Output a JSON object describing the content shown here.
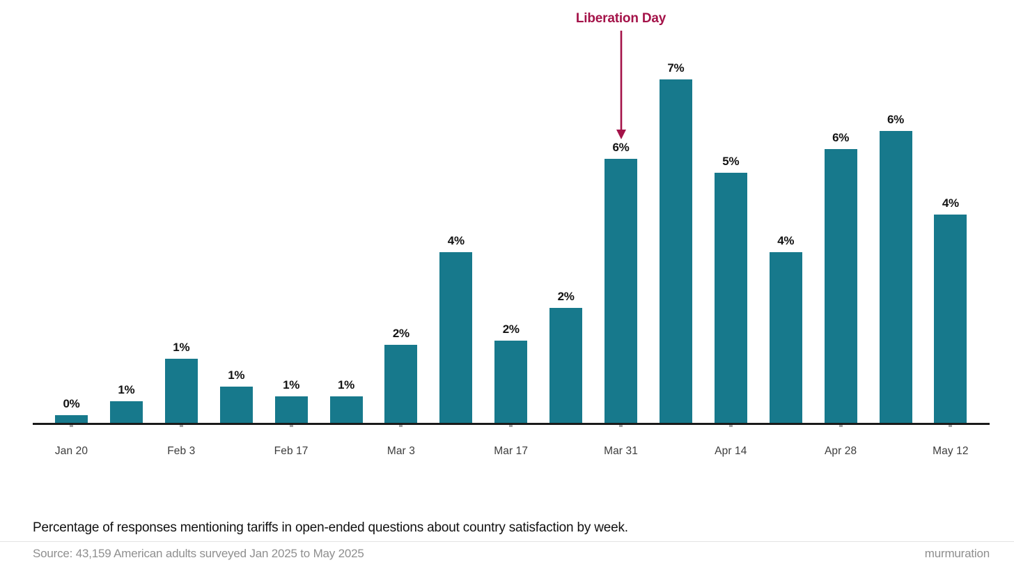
{
  "chart_data": {
    "type": "bar",
    "title": "",
    "xlabel": "",
    "ylabel": "",
    "ylim": [
      0,
      7.4
    ],
    "grid": false,
    "legend": false,
    "bars": [
      {
        "value_pct": 0.2,
        "label": "0%"
      },
      {
        "value_pct": 0.5,
        "label": "1%"
      },
      {
        "value_pct": 1.4,
        "label": "1%"
      },
      {
        "value_pct": 0.8,
        "label": "1%"
      },
      {
        "value_pct": 0.6,
        "label": "1%"
      },
      {
        "value_pct": 0.6,
        "label": "1%"
      },
      {
        "value_pct": 1.7,
        "label": "2%"
      },
      {
        "value_pct": 3.7,
        "label": "4%"
      },
      {
        "value_pct": 1.8,
        "label": "2%"
      },
      {
        "value_pct": 2.5,
        "label": "2%"
      },
      {
        "value_pct": 5.7,
        "label": "6%"
      },
      {
        "value_pct": 7.4,
        "label": "7%"
      },
      {
        "value_pct": 5.4,
        "label": "5%"
      },
      {
        "value_pct": 3.7,
        "label": "4%"
      },
      {
        "value_pct": 5.9,
        "label": "6%"
      },
      {
        "value_pct": 6.3,
        "label": "6%"
      },
      {
        "value_pct": 4.5,
        "label": "4%"
      }
    ],
    "x_ticks": [
      {
        "label": "Jan 20",
        "bar_index": 0
      },
      {
        "label": "Feb 3",
        "bar_index": 2
      },
      {
        "label": "Feb 17",
        "bar_index": 4
      },
      {
        "label": "Mar 3",
        "bar_index": 6
      },
      {
        "label": "Mar 17",
        "bar_index": 8
      },
      {
        "label": "Mar 31",
        "bar_index": 10
      },
      {
        "label": "Apr 14",
        "bar_index": 12
      },
      {
        "label": "Apr 28",
        "bar_index": 14
      },
      {
        "label": "May 12",
        "bar_index": 16
      }
    ],
    "annotation": {
      "text": "Liberation Day",
      "bar_index": 10
    },
    "caption": "Percentage of responses mentioning tariffs in open-ended questions about country satisfaction by week.",
    "source": "Source: 43,159 American adults surveyed Jan 2025 to May 2025",
    "brand": "murmuration",
    "colors": {
      "bar": "#17798C",
      "annotation": "#A41349",
      "value_label": "#131313",
      "tick_label": "#3C3C3C",
      "muted_text": "#8F8F8F",
      "axis": "#1A1A1A",
      "divider": "#E3E3E3"
    }
  }
}
